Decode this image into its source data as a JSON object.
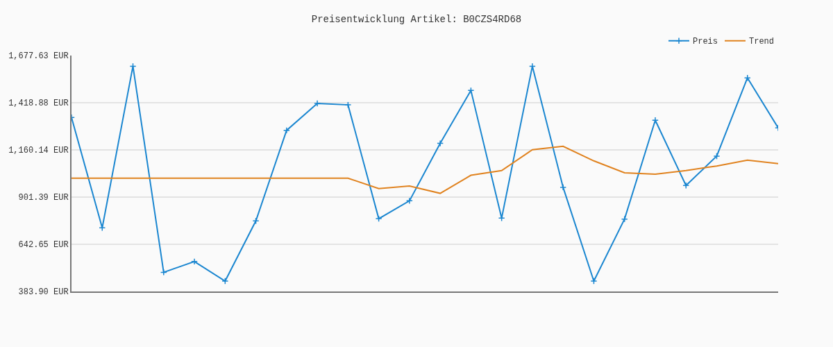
{
  "chart_data": {
    "type": "line",
    "title": "Preisentwicklung Artikel: B0CZS4RD68",
    "categories": [
      null,
      null,
      null,
      null,
      null,
      null,
      null,
      null,
      null,
      null,
      null,
      null,
      null,
      null,
      null,
      null,
      null,
      null,
      null,
      null,
      null,
      null,
      null,
      null
    ],
    "series": [
      {
        "name": "Preis",
        "color": "#1a86d0",
        "marker": "cross",
        "values": [
          1338,
          733,
          1619,
          489,
          548,
          441,
          771,
          1267,
          1415,
          1407,
          783,
          881,
          1196,
          1486,
          786,
          1619,
          955,
          441,
          781,
          1323,
          965,
          1126,
          1555,
          1281
        ]
      },
      {
        "name": "Trend",
        "color": "#e0821e",
        "marker": "none",
        "values": [
          1005,
          1005,
          1005,
          1005,
          1005,
          1005,
          1005,
          1005,
          1005,
          1005,
          948,
          962,
          922,
          1021,
          1047,
          1161,
          1180,
          1100,
          1035,
          1027,
          1047,
          1072,
          1104,
          1085
        ]
      }
    ],
    "ylim": [
      383.9,
      1677.63
    ],
    "yticks": [
      {
        "value": 383.9,
        "label": "383.90 EUR"
      },
      {
        "value": 642.65,
        "label": "642.65 EUR"
      },
      {
        "value": 901.39,
        "label": "901.39 EUR"
      },
      {
        "value": 1160.14,
        "label": "1,160.14 EUR"
      },
      {
        "value": 1418.88,
        "label": "1,418.88 EUR"
      },
      {
        "value": 1677.63,
        "label": "1,677.63 EUR"
      }
    ],
    "grid": "y",
    "legend": "top right",
    "tick_labels": "y",
    "line_style": "solid"
  }
}
